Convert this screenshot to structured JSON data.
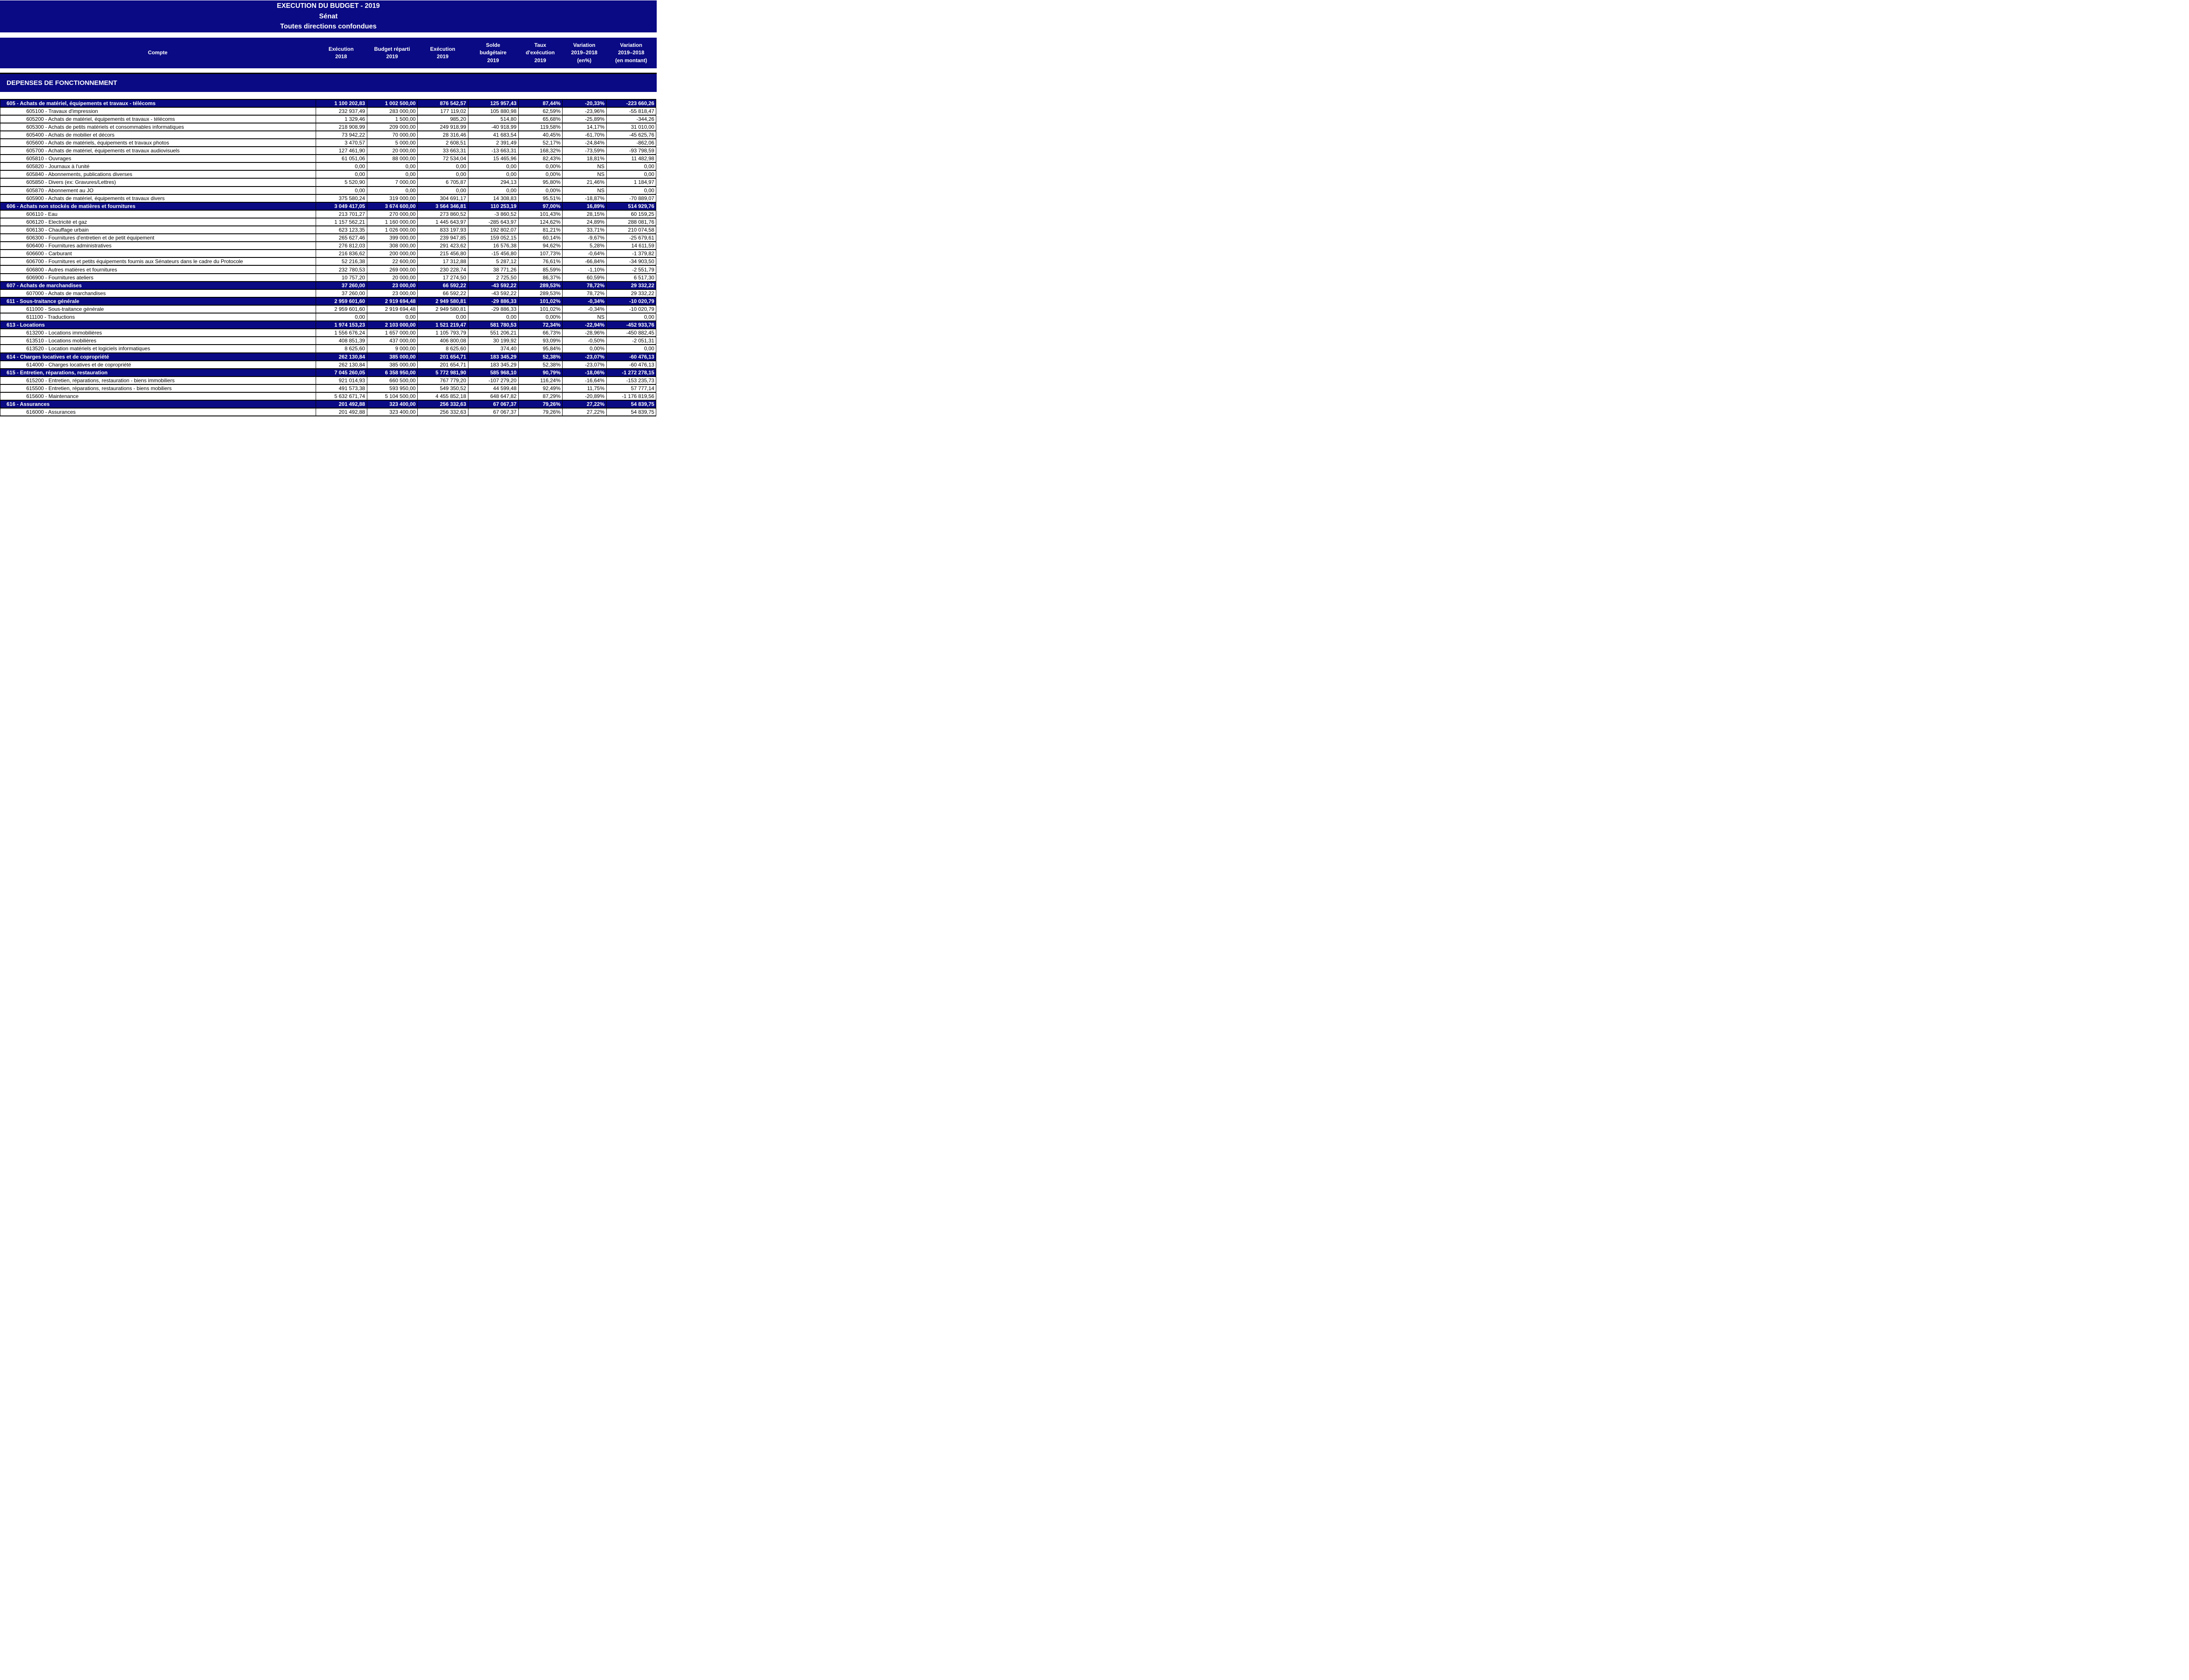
{
  "title": {
    "lines": [
      "EXECUTION DU BUDGET - 2019",
      "Sénat",
      "Toutes directions confondues"
    ]
  },
  "header": {
    "compte": "Compte",
    "columns": [
      [
        "Exécution",
        "2018"
      ],
      [
        "Budget réparti",
        "2019"
      ],
      [
        "Exécution",
        "2019"
      ],
      [
        "Solde",
        "budgétaire",
        "2019"
      ],
      [
        "Taux",
        "d'exécution",
        "2019"
      ],
      [
        "Variation",
        "2019–2018",
        "(en%)"
      ],
      [
        "Variation",
        "2019–2018",
        "(en montant)"
      ]
    ]
  },
  "section_title": "DEPENSES DE FONCTIONNEMENT",
  "colors": {
    "navy": "#0a0a84",
    "border": "#000000",
    "text_light": "#ffffff",
    "text_dark": "#000000"
  },
  "rows": [
    {
      "type": "group",
      "label": "605 - Achats de matériel, équipements et travaux - télécoms",
      "values": [
        "1 100 202,83",
        "1 002 500,00",
        "876 542,57",
        "125 957,43",
        "87,44%",
        "-20,33%",
        "-223 660,26"
      ]
    },
    {
      "type": "detail",
      "label": "605100 - Travaux d'impression",
      "values": [
        "232 937,49",
        "283 000,00",
        "177 119,02",
        "105 880,98",
        "62,59%",
        "-23,96%",
        "-55 818,47"
      ]
    },
    {
      "type": "detail",
      "label": "605200 - Achats de matériel, équipements et travaux - télécoms",
      "values": [
        "1 329,46",
        "1 500,00",
        "985,20",
        "514,80",
        "65,68%",
        "-25,89%",
        "-344,26"
      ]
    },
    {
      "type": "detail",
      "label": "605300 - Achats de petits matériels et consommables informatiques",
      "values": [
        "218 908,99",
        "209 000,00",
        "249 918,99",
        "-40 918,99",
        "119,58%",
        "14,17%",
        "31 010,00"
      ]
    },
    {
      "type": "detail",
      "label": "605400 - Achats de mobilier et décors",
      "values": [
        "73 942,22",
        "70 000,00",
        "28 316,46",
        "41 683,54",
        "40,45%",
        "-61,70%",
        "-45 625,76"
      ]
    },
    {
      "type": "detail",
      "label": "605600 - Achats de matériels, équipements et travaux photos",
      "values": [
        "3 470,57",
        "5 000,00",
        "2 608,51",
        "2 391,49",
        "52,17%",
        "-24,84%",
        "-862,06"
      ]
    },
    {
      "type": "detail",
      "label": "605700 - Achats de matériel, équipements et travaux audiovisuels",
      "values": [
        "127 461,90",
        "20 000,00",
        "33 663,31",
        "-13 663,31",
        "168,32%",
        "-73,59%",
        "-93 798,59"
      ]
    },
    {
      "type": "detail",
      "label": "605810 - Ouvrages",
      "values": [
        "61 051,06",
        "88 000,00",
        "72 534,04",
        "15 465,96",
        "82,43%",
        "18,81%",
        "11 482,98"
      ]
    },
    {
      "type": "detail",
      "label": "605820 - Journaux à l'unité",
      "values": [
        "0,00",
        "0,00",
        "0,00",
        "0,00",
        "0,00%",
        "NS",
        "0,00"
      ]
    },
    {
      "type": "detail",
      "label": "605840 - Abonnements, publications diverses",
      "values": [
        "0,00",
        "0,00",
        "0,00",
        "0,00",
        "0,00%",
        "NS",
        "0,00"
      ]
    },
    {
      "type": "detail",
      "label": "605850 - Divers (ex: Gravures/Lettres)",
      "values": [
        "5 520,90",
        "7 000,00",
        "6 705,87",
        "294,13",
        "95,80%",
        "21,46%",
        "1 184,97"
      ]
    },
    {
      "type": "detail",
      "label": "605870 - Abonnement au JO",
      "values": [
        "0,00",
        "0,00",
        "0,00",
        "0,00",
        "0,00%",
        "NS",
        "0,00"
      ]
    },
    {
      "type": "detail",
      "label": "605900 - Achats de matériel, équipements et travaux divers",
      "values": [
        "375 580,24",
        "319 000,00",
        "304 691,17",
        "14 308,83",
        "95,51%",
        "-18,87%",
        "-70 889,07"
      ]
    },
    {
      "type": "group",
      "label": "606 - Achats non stockés de matières et fournitures",
      "values": [
        "3 049 417,05",
        "3 674 600,00",
        "3 564 346,81",
        "110 253,19",
        "97,00%",
        "16,89%",
        "514 929,76"
      ]
    },
    {
      "type": "detail",
      "label": "606110 - Eau",
      "values": [
        "213 701,27",
        "270 000,00",
        "273 860,52",
        "-3 860,52",
        "101,43%",
        "28,15%",
        "60 159,25"
      ]
    },
    {
      "type": "detail",
      "label": "606120 - Electricité et gaz",
      "values": [
        "1 157 562,21",
        "1 160 000,00",
        "1 445 643,97",
        "-285 643,97",
        "124,62%",
        "24,89%",
        "288 081,76"
      ]
    },
    {
      "type": "detail",
      "label": "606130 - Chauffage urbain",
      "values": [
        "623 123,35",
        "1 026 000,00",
        "833 197,93",
        "192 802,07",
        "81,21%",
        "33,71%",
        "210 074,58"
      ]
    },
    {
      "type": "detail",
      "label": "606300 - Fournitures d'entretien et de petit équipement",
      "values": [
        "265 627,46",
        "399 000,00",
        "239 947,85",
        "159 052,15",
        "60,14%",
        "-9,67%",
        "-25 679,61"
      ]
    },
    {
      "type": "detail",
      "label": "606400 - Fournitures administratives",
      "values": [
        "276 812,03",
        "308 000,00",
        "291 423,62",
        "16 576,38",
        "94,62%",
        "5,28%",
        "14 611,59"
      ]
    },
    {
      "type": "detail",
      "label": "606600 - Carburant",
      "values": [
        "216 836,62",
        "200 000,00",
        "215 456,80",
        "-15 456,80",
        "107,73%",
        "-0,64%",
        "-1 379,82"
      ]
    },
    {
      "type": "detail",
      "label": "606700 - Fournitures et petits équipements fournis aux Sénateurs dans le cadre du Protocole",
      "values": [
        "52 216,38",
        "22 600,00",
        "17 312,88",
        "5 287,12",
        "76,61%",
        "-66,84%",
        "-34 903,50"
      ]
    },
    {
      "type": "detail",
      "label": "606800 - Autres matières et fournitures",
      "values": [
        "232 780,53",
        "269 000,00",
        "230 228,74",
        "38 771,26",
        "85,59%",
        "-1,10%",
        "-2 551,79"
      ]
    },
    {
      "type": "detail",
      "label": "606900 - Fournitures ateliers",
      "values": [
        "10 757,20",
        "20 000,00",
        "17 274,50",
        "2 725,50",
        "86,37%",
        "60,59%",
        "6 517,30"
      ]
    },
    {
      "type": "group",
      "label": "607 - Achats de marchandises",
      "values": [
        "37 260,00",
        "23 000,00",
        "66 592,22",
        "-43 592,22",
        "289,53%",
        "78,72%",
        "29 332,22"
      ]
    },
    {
      "type": "detail",
      "label": "607000 - Achats de marchandises",
      "values": [
        "37 260,00",
        "23 000,00",
        "66 592,22",
        "-43 592,22",
        "289,53%",
        "78,72%",
        "29 332,22"
      ]
    },
    {
      "type": "group",
      "label": "611 - Sous-traitance générale",
      "values": [
        "2 959 601,60",
        "2 919 694,48",
        "2 949 580,81",
        "-29 886,33",
        "101,02%",
        "-0,34%",
        "-10 020,79"
      ]
    },
    {
      "type": "detail",
      "label": "611000 - Sous-traitance générale",
      "values": [
        "2 959 601,60",
        "2 919 694,48",
        "2 949 580,81",
        "-29 886,33",
        "101,02%",
        "-0,34%",
        "-10 020,79"
      ]
    },
    {
      "type": "detail",
      "label": "611100 - Traductions",
      "values": [
        "0,00",
        "0,00",
        "0,00",
        "0,00",
        "0,00%",
        "NS",
        "0,00"
      ]
    },
    {
      "type": "group",
      "label": "613 - Locations",
      "values": [
        "1 974 153,23",
        "2 103 000,00",
        "1 521 219,47",
        "581 780,53",
        "72,34%",
        "-22,94%",
        "-452 933,76"
      ]
    },
    {
      "type": "detail",
      "label": "613200 - Locations immobilières",
      "values": [
        "1 556 676,24",
        "1 657 000,00",
        "1 105 793,79",
        "551 206,21",
        "66,73%",
        "-28,96%",
        "-450 882,45"
      ]
    },
    {
      "type": "detail",
      "label": "613510 - Locations mobilières",
      "values": [
        "408 851,39",
        "437 000,00",
        "406 800,08",
        "30 199,92",
        "93,09%",
        "-0,50%",
        "-2 051,31"
      ]
    },
    {
      "type": "detail",
      "label": "613520 - Location matériels et logiciels informatiques",
      "values": [
        "8 625,60",
        "9 000,00",
        "8 625,60",
        "374,40",
        "95,84%",
        "0,00%",
        "0,00"
      ]
    },
    {
      "type": "group",
      "label": "614 - Charges locatives et de copropriété",
      "values": [
        "262 130,84",
        "385 000,00",
        "201 654,71",
        "183 345,29",
        "52,38%",
        "-23,07%",
        "-60 476,13"
      ]
    },
    {
      "type": "detail",
      "label": "614000 - Charges locatives et de copropriété",
      "values": [
        "262 130,84",
        "385 000,00",
        "201 654,71",
        "183 345,29",
        "52,38%",
        "-23,07%",
        "-60 476,13"
      ]
    },
    {
      "type": "group",
      "label": "615 - Entretien, réparations, restauration",
      "values": [
        "7 045 260,05",
        "6 358 950,00",
        "5 772 981,90",
        "585 968,10",
        "90,79%",
        "-18,06%",
        "-1 272 278,15"
      ]
    },
    {
      "type": "detail",
      "label": "615200 - Entretien, réparations, restauration - biens immobiliers",
      "values": [
        "921 014,93",
        "660 500,00",
        "767 779,20",
        "-107 279,20",
        "116,24%",
        "-16,64%",
        "-153 235,73"
      ]
    },
    {
      "type": "detail",
      "label": "615500 - Entretien, réparations, restaurations - biens mobiliers",
      "values": [
        "491 573,38",
        "593 950,00",
        "549 350,52",
        "44 599,48",
        "92,49%",
        "11,75%",
        "57 777,14"
      ]
    },
    {
      "type": "detail",
      "label": "615600 - Maintenance",
      "values": [
        "5 632 671,74",
        "5 104 500,00",
        "4 455 852,18",
        "648 647,82",
        "87,29%",
        "-20,89%",
        "-1 176 819,56"
      ]
    },
    {
      "type": "group",
      "label": "616 - Assurances",
      "values": [
        "201 492,88",
        "323 400,00",
        "256 332,63",
        "67 067,37",
        "79,26%",
        "27,22%",
        "54 839,75"
      ]
    },
    {
      "type": "detail",
      "label": "616000 - Assurances",
      "values": [
        "201 492,88",
        "323 400,00",
        "256 332,63",
        "67 067,37",
        "79,26%",
        "27,22%",
        "54 839,75"
      ]
    }
  ]
}
